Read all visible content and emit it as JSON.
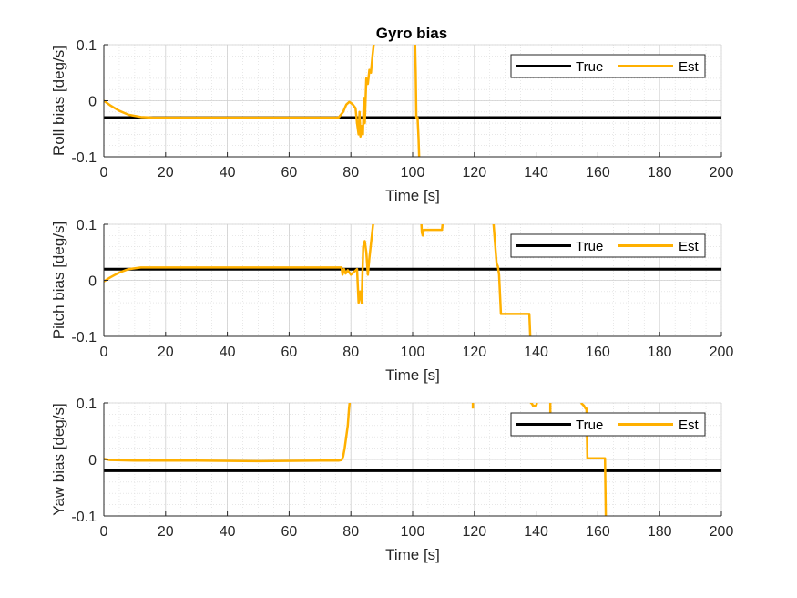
{
  "figure": {
    "title": "Gyro bias"
  },
  "chart_data": [
    {
      "type": "line",
      "title": "Gyro bias",
      "xlabel": "Time [s]",
      "ylabel": "Roll bias [deg/s]",
      "xlim": [
        0,
        200
      ],
      "ylim": [
        -0.1,
        0.1
      ],
      "xticks": [
        0,
        20,
        40,
        60,
        80,
        100,
        120,
        140,
        160,
        180,
        200
      ],
      "yticks": [
        -0.1,
        0,
        0.1
      ],
      "ytick_labels": [
        "-0.1",
        "0",
        "0.1"
      ],
      "grid": true,
      "minor_grid": true,
      "legend": {
        "location": "top-right",
        "orientation": "horizontal"
      },
      "series": [
        {
          "name": "True",
          "color": "#000000",
          "x": [
            0,
            200
          ],
          "y": [
            -0.03,
            -0.03
          ]
        },
        {
          "name": "Est",
          "color": "#FFB000",
          "x": [
            0,
            2,
            5,
            8,
            12,
            16,
            20,
            40,
            60,
            76,
            77.5,
            78.5,
            79.5,
            80.5,
            81.5,
            82,
            82.5,
            82.8,
            83.1,
            83.5,
            83.9,
            84.2,
            84.5,
            85,
            85.5,
            86,
            86.5,
            87,
            87.7
          ],
          "y": [
            0,
            -0.008,
            -0.018,
            -0.025,
            -0.029,
            -0.03,
            -0.03,
            -0.03,
            -0.03,
            -0.03,
            -0.02,
            -0.007,
            -0.002,
            -0.006,
            -0.013,
            -0.04,
            -0.06,
            -0.02,
            -0.064,
            -0.045,
            -0.06,
            0.005,
            -0.04,
            0.04,
            0.03,
            0.055,
            0.05,
            0.08,
            0.115
          ]
        },
        {
          "name": "Est",
          "color": "#FFB000",
          "x": [
            100.5,
            100.8,
            101,
            101.2,
            101.6,
            101.9,
            102.2
          ],
          "y": [
            0.115,
            0.1,
            0.05,
            -0.03,
            -0.03,
            -0.065,
            -0.115
          ]
        }
      ]
    },
    {
      "type": "line",
      "title": "",
      "xlabel": "Time [s]",
      "ylabel": "Pitch bias [deg/s]",
      "xlim": [
        0,
        200
      ],
      "ylim": [
        -0.1,
        0.1
      ],
      "xticks": [
        0,
        20,
        40,
        60,
        80,
        100,
        120,
        140,
        160,
        180,
        200
      ],
      "yticks": [
        -0.1,
        0,
        0.1
      ],
      "ytick_labels": [
        "-0.1",
        "0",
        "0.1"
      ],
      "grid": true,
      "minor_grid": true,
      "legend": {
        "location": "top-right",
        "orientation": "horizontal"
      },
      "series": [
        {
          "name": "True",
          "color": "#000000",
          "x": [
            0,
            200
          ],
          "y": [
            0.02,
            0.02
          ]
        },
        {
          "name": "Est",
          "color": "#FFB000",
          "x": [
            0,
            2,
            5,
            8,
            12,
            20,
            40,
            60,
            77,
            77.3,
            77.8,
            78.3,
            79,
            80,
            81,
            82,
            82.5,
            83,
            83.5,
            84,
            84.5,
            85,
            85.5,
            86,
            87,
            87.5
          ],
          "y": [
            -0.002,
            0.005,
            0.014,
            0.02,
            0.023,
            0.023,
            0.023,
            0.023,
            0.023,
            0.01,
            0.02,
            0.012,
            0.018,
            0.01,
            0.015,
            0.02,
            -0.04,
            -0.02,
            -0.04,
            0.06,
            0.07,
            0.05,
            0.01,
            0.04,
            0.09,
            0.115
          ]
        },
        {
          "name": "Est",
          "color": "#FFB000",
          "x": [
            102,
            102.8,
            103,
            103.3,
            103.6,
            104,
            109.5,
            109.7,
            110
          ],
          "y": [
            0.115,
            0.105,
            0.085,
            0.08,
            0.09,
            0.09,
            0.09,
            0.1,
            0.1
          ]
        },
        {
          "name": "Est",
          "color": "#FFB000",
          "x": [
            126,
            127.2,
            127.6,
            128,
            128.6,
            137.8,
            138.2
          ],
          "y": [
            0.115,
            0.03,
            0.025,
            0.01,
            -0.06,
            -0.06,
            -0.115
          ]
        }
      ]
    },
    {
      "type": "line",
      "title": "",
      "xlabel": "Time [s]",
      "ylabel": "Yaw bias [deg/s]",
      "xlim": [
        0,
        200
      ],
      "ylim": [
        -0.1,
        0.1
      ],
      "xticks": [
        0,
        20,
        40,
        60,
        80,
        100,
        120,
        140,
        160,
        180,
        200
      ],
      "yticks": [
        -0.1,
        0,
        0.1
      ],
      "ytick_labels": [
        "-0.1",
        "0",
        "0.1"
      ],
      "grid": true,
      "minor_grid": true,
      "legend": {
        "location": "top-right",
        "orientation": "horizontal"
      },
      "series": [
        {
          "name": "True",
          "color": "#000000",
          "x": [
            0,
            200
          ],
          "y": [
            -0.02,
            -0.02
          ]
        },
        {
          "name": "Est",
          "color": "#FFB000",
          "x": [
            0,
            2,
            10,
            30,
            50,
            70,
            76,
            77,
            77.5,
            78,
            78.5,
            79,
            79.4,
            79.7,
            80
          ],
          "y": [
            0.001,
            -0.001,
            -0.002,
            -0.002,
            -0.003,
            -0.002,
            -0.002,
            -0.001,
            0.005,
            0.02,
            0.04,
            0.06,
            0.09,
            0.105,
            0.115
          ]
        },
        {
          "name": "Est",
          "color": "#FFB000",
          "x": [
            119.5,
            119.5
          ],
          "y": [
            0.09,
            0.1
          ]
        },
        {
          "name": "Est",
          "color": "#FFB000",
          "x": [
            138,
            138.5,
            139,
            139.5,
            140,
            140.3
          ],
          "y": [
            0.1,
            0.1,
            0.095,
            0.095,
            0.095,
            0.1
          ]
        },
        {
          "name": "Est",
          "color": "#FFB000",
          "x": [
            144.6,
            144.6
          ],
          "y": [
            0.1,
            0.08
          ]
        },
        {
          "name": "Est",
          "color": "#FFB000",
          "x": [
            154.5,
            155.5,
            156,
            156.3,
            156.6,
            157,
            162.3,
            162.6
          ],
          "y": [
            0.1,
            0.095,
            0.09,
            0.09,
            0.002,
            0.002,
            0.002,
            -0.115
          ]
        }
      ]
    }
  ]
}
